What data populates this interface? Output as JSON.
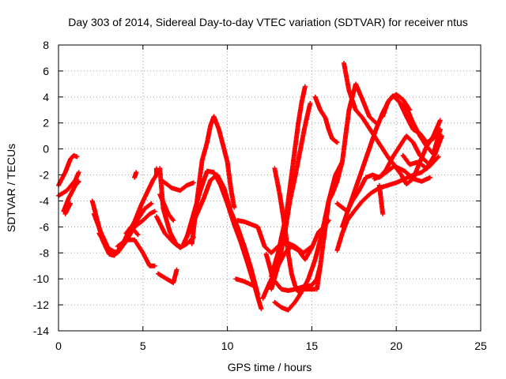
{
  "chart_data": {
    "type": "scatter",
    "title": "Day 303 of 2014, Sidereal Day-to-day VTEC variation (SDTVAR) for receiver ntus",
    "xlabel": "GPS time / hours",
    "ylabel": "SDTVAR / TECUs",
    "xlim": [
      0,
      25
    ],
    "ylim": [
      -14,
      8
    ],
    "x_ticks": [
      0,
      5,
      10,
      15,
      20,
      25
    ],
    "y_ticks": [
      -14,
      -12,
      -10,
      -8,
      -6,
      -4,
      -2,
      0,
      2,
      4,
      6,
      8
    ],
    "grid": true,
    "legend": "none",
    "marker": "+",
    "color": "#ff0000",
    "series": [
      {
        "x": [
          0.0,
          0.4,
          0.7,
          0.9,
          1.1
        ],
        "y": [
          -2.8,
          -1.8,
          -0.8,
          -0.5,
          -0.6
        ]
      },
      {
        "x": [
          0.0,
          0.5,
          1.0,
          1.2
        ],
        "y": [
          -3.6,
          -3.2,
          -2.4,
          -1.8
        ]
      },
      {
        "x": [
          0.3,
          0.6,
          1.0,
          1.2
        ],
        "y": [
          -4.8,
          -3.8,
          -2.8,
          -2.5
        ]
      },
      {
        "x": [
          0.4,
          0.7
        ],
        "y": [
          -5.0,
          -4.2
        ]
      },
      {
        "x": [
          2.0,
          2.3,
          2.6,
          3.0,
          3.3,
          3.7,
          4.1,
          4.5,
          4.9,
          5.3,
          5.6,
          5.8,
          5.8
        ],
        "y": [
          -4.0,
          -5.5,
          -7.0,
          -8.1,
          -8.2,
          -7.6,
          -6.5,
          -5.6,
          -4.3,
          -3.2,
          -2.4,
          -2.0,
          -1.5
        ]
      },
      {
        "x": [
          2.1,
          2.5,
          3.0,
          3.5,
          4.0,
          4.5,
          5.0,
          5.4,
          5.7
        ],
        "y": [
          -5.0,
          -6.4,
          -7.8,
          -8.0,
          -7.1,
          -6.0,
          -5.5,
          -5.0,
          -4.8
        ]
      },
      {
        "x": [
          2.4,
          2.9,
          3.4,
          3.9,
          4.3,
          4.7,
          5.1,
          5.5
        ],
        "y": [
          -6.5,
          -7.6,
          -8.0,
          -7.2,
          -6.2,
          -5.4,
          -4.6,
          -4.2
        ]
      },
      {
        "x": [
          3.5,
          4.0,
          4.5,
          5.0,
          5.4,
          5.7
        ],
        "y": [
          -7.5,
          -7.0,
          -7.0,
          -8.0,
          -9.0,
          -9.0
        ]
      },
      {
        "x": [
          4.0,
          4.3,
          4.7
        ],
        "y": [
          -6.5,
          -6.0,
          -6.6
        ]
      },
      {
        "x": [
          4.5,
          4.6
        ],
        "y": [
          -2.2,
          -1.8
        ]
      },
      {
        "x": [
          6.0,
          6.2,
          6.6,
          7.0,
          7.2
        ],
        "y": [
          -1.5,
          -4.6,
          -6.4,
          -7.4,
          -7.5
        ]
      },
      {
        "x": [
          6.2,
          6.7,
          7.2,
          7.6,
          8.0
        ],
        "y": [
          -2.5,
          -3.0,
          -3.2,
          -2.8,
          -2.6
        ]
      },
      {
        "x": [
          6.0,
          6.5,
          6.8
        ],
        "y": [
          -3.5,
          -5.0,
          -5.5
        ]
      },
      {
        "x": [
          5.8,
          6.3,
          6.8,
          7.2,
          7.6,
          8.0
        ],
        "y": [
          -5.2,
          -6.5,
          -7.2,
          -7.6,
          -7.3,
          -6.8
        ]
      },
      {
        "x": [
          5.9,
          6.4,
          6.8,
          7.0
        ],
        "y": [
          -9.6,
          -10.0,
          -10.3,
          -9.3
        ]
      },
      {
        "x": [
          7.4,
          7.8,
          8.2,
          8.6,
          9.0,
          9.4,
          9.8,
          10.2,
          10.6,
          11.0,
          11.4,
          11.8
        ],
        "y": [
          -7.3,
          -6.2,
          -5.0,
          -3.8,
          -2.4,
          -2.0,
          -3.0,
          -4.8,
          -6.0,
          -7.5,
          -9.2,
          -11.2
        ]
      },
      {
        "x": [
          7.6,
          8.0,
          8.4,
          8.8,
          9.2,
          9.6,
          10.0,
          10.4,
          10.8,
          11.2,
          11.6,
          12.0
        ],
        "y": [
          -6.8,
          -5.0,
          -3.2,
          -1.7,
          -1.8,
          -2.8,
          -4.2,
          -5.8,
          -7.2,
          -8.8,
          -10.5,
          -12.3
        ]
      },
      {
        "x": [
          7.9,
          8.2,
          8.5,
          8.8,
          9.0,
          9.2,
          9.5,
          10.0,
          10.2,
          10.4
        ],
        "y": [
          -7.3,
          -4.0,
          -0.9,
          0.5,
          1.8,
          2.5,
          1.5,
          -1.0,
          -3.0,
          -4.5
        ]
      },
      {
        "x": [
          10.6,
          11.0,
          11.4,
          11.8,
          12.2,
          12.6,
          13.0,
          13.5,
          14.0,
          14.5,
          15.0
        ],
        "y": [
          -5.5,
          -5.6,
          -5.8,
          -6.0,
          -7.5,
          -8.0,
          -7.5,
          -7.2,
          -7.5,
          -8.0,
          -7.5
        ]
      },
      {
        "x": [
          10.5,
          11.0,
          11.5
        ],
        "y": [
          -10.0,
          -10.2,
          -10.5
        ]
      },
      {
        "x": [
          12.3,
          12.7,
          13.2,
          13.6,
          14.0,
          14.5,
          15.0,
          15.3,
          15.5
        ],
        "y": [
          -8.1,
          -10.0,
          -10.8,
          -10.9,
          -10.8,
          -10.6,
          -10.5,
          -10.0,
          -9.0
        ]
      },
      {
        "x": [
          12.1,
          12.5,
          13.0,
          13.4,
          13.8,
          14.2,
          14.6,
          15.0,
          15.4,
          15.7,
          16.0
        ],
        "y": [
          -11.5,
          -10.3,
          -9.0,
          -8.0,
          -7.5,
          -7.8,
          -8.5,
          -7.6,
          -6.4,
          -6.0,
          -5.5
        ]
      },
      {
        "x": [
          12.6,
          13.0,
          13.5,
          13.8,
          14.0,
          14.2,
          14.4,
          14.6
        ],
        "y": [
          -9.8,
          -8.0,
          -5.0,
          -2.0,
          0.0,
          2.0,
          3.6,
          4.8
        ]
      },
      {
        "x": [
          12.6,
          13.0,
          13.4,
          13.7,
          14.0,
          14.3,
          14.6,
          14.9
        ],
        "y": [
          -10.8,
          -9.0,
          -6.5,
          -4.0,
          -2.2,
          -0.2,
          1.8,
          3.5
        ]
      },
      {
        "x": [
          12.8,
          13.2,
          13.6,
          14.0,
          14.4,
          14.8,
          15.2,
          15.6,
          16.0,
          16.4,
          16.8
        ],
        "y": [
          -11.8,
          -12.2,
          -12.4,
          -11.8,
          -11.0,
          -10.0,
          -8.5,
          -6.5,
          -4.0,
          -2.0,
          -1.0
        ]
      },
      {
        "x": [
          12.8,
          13.1,
          13.4,
          13.6,
          13.8,
          14.0,
          14.2,
          14.4,
          14.8,
          15.2
        ],
        "y": [
          -1.5,
          -3.5,
          -6.0,
          -8.0,
          -9.6,
          -10.5,
          -11.0,
          -10.8,
          -10.8,
          -10.8
        ]
      },
      {
        "x": [
          15.2,
          15.5,
          15.8,
          16.0,
          16.2,
          16.5
        ],
        "y": [
          4.0,
          3.0,
          2.4,
          1.5,
          0.8,
          0.5
        ]
      },
      {
        "x": [
          15.3,
          15.5,
          15.7,
          16.0,
          16.2,
          16.5,
          16.8,
          17.0,
          17.2,
          17.4,
          17.6,
          18.0,
          18.4,
          18.8
        ],
        "y": [
          -10.8,
          -9.0,
          -7.0,
          -4.0,
          -3.5,
          -2.5,
          -1.0,
          1.0,
          3.0,
          4.0,
          5.0,
          3.8,
          2.5,
          2.0
        ]
      },
      {
        "x": [
          16.5,
          16.8,
          17.1,
          17.4,
          17.8,
          18.2,
          18.6,
          19.0,
          19.4,
          19.8,
          20.2,
          20.6,
          21.0,
          21.4,
          21.8
        ],
        "y": [
          -4.2,
          -4.5,
          -4.8,
          -4.0,
          -3.2,
          -2.2,
          -2.0,
          -2.2,
          -1.6,
          -0.6,
          0.2,
          1.0,
          0.5,
          -0.5,
          -1.0
        ]
      },
      {
        "x": [
          16.5,
          16.8,
          17.1,
          17.5,
          18.0,
          18.5,
          19.0,
          19.5,
          20.0,
          20.5,
          21.0,
          21.5,
          22.0,
          22.5
        ],
        "y": [
          -7.8,
          -6.5,
          -5.5,
          -4.8,
          -4.0,
          -3.4,
          -3.0,
          -2.8,
          -2.6,
          -2.3,
          -2.0,
          -1.8,
          -1.3,
          -0.6
        ]
      },
      {
        "x": [
          16.8,
          17.2,
          17.6,
          18.0,
          18.4,
          18.8,
          19.2,
          19.6,
          20.0,
          20.4,
          20.8
        ],
        "y": [
          -6.0,
          -4.5,
          -3.0,
          -1.5,
          0.0,
          1.5,
          2.8,
          3.8,
          4.2,
          3.8,
          3.0
        ]
      },
      {
        "x": [
          16.9,
          17.2,
          17.6,
          18.0,
          18.4,
          18.8,
          19.2,
          19.6,
          20.0,
          20.5,
          21.0,
          21.5,
          22.0
        ],
        "y": [
          6.6,
          4.5,
          3.0,
          2.4,
          1.6,
          0.8,
          0.0,
          -0.8,
          -1.4,
          -1.7,
          -2.3,
          -2.5,
          -2.2
        ]
      },
      {
        "x": [
          19.2,
          19.5,
          19.8,
          20.2,
          20.6,
          21.0,
          21.4,
          21.8,
          22.2,
          22.6
        ],
        "y": [
          2.5,
          3.6,
          4.1,
          3.6,
          2.5,
          1.5,
          1.2,
          0.5,
          0.8,
          1.5
        ]
      },
      {
        "x": [
          18.7,
          19.1,
          19.5,
          19.9,
          20.3,
          20.6,
          21.0,
          21.4,
          21.8,
          22.2,
          22.6
        ],
        "y": [
          -2.3,
          -2.1,
          -1.7,
          -1.3,
          -2.0,
          -2.7,
          -2.3,
          -1.0,
          0.2,
          1.0,
          2.2
        ]
      },
      {
        "x": [
          20.3,
          20.6,
          21.0,
          21.4,
          21.8,
          22.2,
          22.6
        ],
        "y": [
          3.4,
          3.2,
          2.0,
          1.0,
          0.2,
          -0.4,
          1.5
        ]
      },
      {
        "x": [
          19.0,
          19.2
        ],
        "y": [
          -2.8,
          -5.0
        ]
      },
      {
        "x": [
          20.4,
          20.8,
          21.3,
          21.8,
          22.3,
          22.7
        ],
        "y": [
          -0.5,
          -1.2,
          -1.0,
          -1.5,
          -0.4,
          1.0
        ]
      }
    ]
  }
}
